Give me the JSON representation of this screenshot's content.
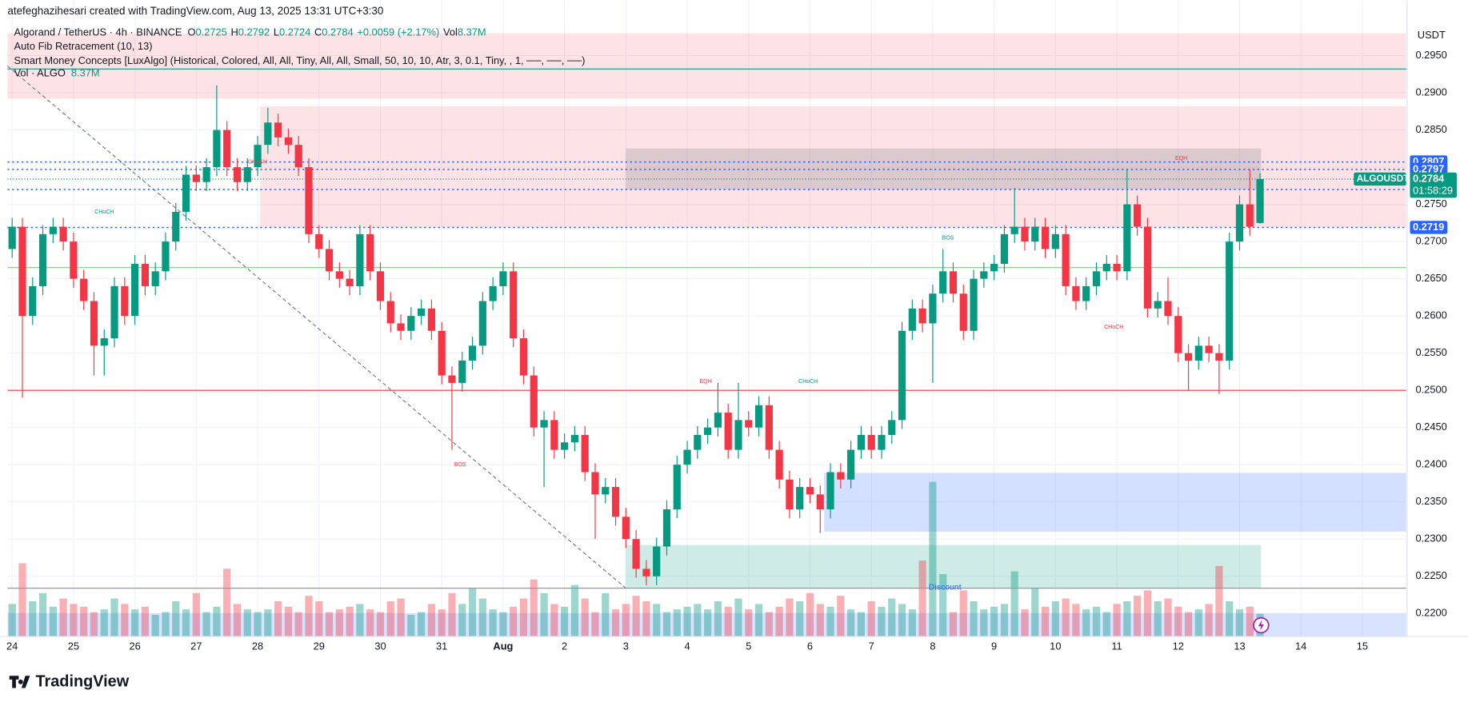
{
  "chart_data": {
    "type": "candlestick",
    "header": {
      "credit": "atefeghazihesari created with TradingView.com, Aug 13, 2025 13:31 UTC+3:30",
      "symbol": "Algorand / TetherUS · 4h · BINANCE",
      "O": "O",
      "H": "H",
      "L": "L",
      "C": "C",
      "change": "+0.0059 (+2.17%)",
      "vol": "Vol",
      "volume_label": "8.37M",
      "fib": "Auto Fib Retracement (10, 13)",
      "smc": "Smart Money Concepts [LuxAlgo] (Historical, Colored, All, All, Tiny, All, All, Small, 50, 10, 10, Atr, 3, 0.1, Tiny, , 1, ──, ──, ──)",
      "vol_name": "Vol · ALGO"
    },
    "currency": "USDT",
    "brand": "TradingView",
    "up_color": "#089981",
    "down_color": "#f23645",
    "ylim": [
      0.2169,
      0.2993
    ],
    "yticks": [
      {
        "value": 0.295,
        "label": "0.2950"
      },
      {
        "value": 0.29,
        "label": "0.2900"
      },
      {
        "value": 0.285,
        "label": "0.2850"
      },
      {
        "value": 0.28,
        "label": "0.2800"
      },
      {
        "value": 0.275,
        "label": "0.2750"
      },
      {
        "value": 0.27,
        "label": "0.2700"
      },
      {
        "value": 0.265,
        "label": "0.2650"
      },
      {
        "value": 0.26,
        "label": "0.2600"
      },
      {
        "value": 0.255,
        "label": "0.2550"
      },
      {
        "value": 0.25,
        "label": "0.2500"
      },
      {
        "value": 0.245,
        "label": "0.2450"
      },
      {
        "value": 0.24,
        "label": "0.2400"
      },
      {
        "value": 0.235,
        "label": "0.2350"
      },
      {
        "value": 0.23,
        "label": "0.2300"
      },
      {
        "value": 0.225,
        "label": "0.2250"
      },
      {
        "value": 0.22,
        "label": "0.2200"
      }
    ],
    "xlim": [
      -0.076,
      22.715
    ],
    "xticks": [
      {
        "value": 0,
        "label": "24"
      },
      {
        "value": 1,
        "label": "25"
      },
      {
        "value": 2,
        "label": "26"
      },
      {
        "value": 3,
        "label": "27"
      },
      {
        "value": 4,
        "label": "28"
      },
      {
        "value": 5,
        "label": "29"
      },
      {
        "value": 6,
        "label": "30"
      },
      {
        "value": 7,
        "label": "31"
      },
      {
        "value": 8,
        "label": "Aug"
      },
      {
        "value": 9,
        "label": "2"
      },
      {
        "value": 10,
        "label": "3"
      },
      {
        "value": 11,
        "label": "4"
      },
      {
        "value": 12,
        "label": "5"
      },
      {
        "value": 13,
        "label": "6"
      },
      {
        "value": 14,
        "label": "7"
      },
      {
        "value": 15,
        "label": "8"
      },
      {
        "value": 16,
        "label": "9"
      },
      {
        "value": 17,
        "label": "10"
      },
      {
        "value": 18,
        "label": "11"
      },
      {
        "value": 19,
        "label": "12"
      },
      {
        "value": 20,
        "label": "13"
      },
      {
        "value": 21,
        "label": "14"
      },
      {
        "value": 22,
        "label": "15"
      }
    ],
    "grid": true,
    "candles": [
      [
        0.269,
        0.2732,
        0.2678,
        0.272
      ],
      [
        0.272,
        0.2732,
        0.249,
        0.26
      ],
      [
        0.26,
        0.2652,
        0.2588,
        0.264
      ],
      [
        0.264,
        0.2722,
        0.2628,
        0.271
      ],
      [
        0.271,
        0.2732,
        0.2698,
        0.272
      ],
      [
        0.272,
        0.2732,
        0.2688,
        0.27
      ],
      [
        0.27,
        0.2712,
        0.2638,
        0.265
      ],
      [
        0.265,
        0.2662,
        0.2608,
        0.262
      ],
      [
        0.262,
        0.2632,
        0.252,
        0.256
      ],
      [
        0.256,
        0.2582,
        0.252,
        0.257
      ],
      [
        0.257,
        0.2652,
        0.2558,
        0.264
      ],
      [
        0.264,
        0.2652,
        0.2588,
        0.26
      ],
      [
        0.26,
        0.2682,
        0.2588,
        0.267
      ],
      [
        0.267,
        0.2682,
        0.2628,
        0.264
      ],
      [
        0.264,
        0.2672,
        0.2628,
        0.266
      ],
      [
        0.266,
        0.2712,
        0.2648,
        0.27
      ],
      [
        0.27,
        0.2752,
        0.2688,
        0.274
      ],
      [
        0.274,
        0.2802,
        0.2728,
        0.279
      ],
      [
        0.279,
        0.2802,
        0.2768,
        0.278
      ],
      [
        0.278,
        0.2812,
        0.2768,
        0.28
      ],
      [
        0.28,
        0.291,
        0.2788,
        0.285
      ],
      [
        0.285,
        0.2862,
        0.2788,
        0.28
      ],
      [
        0.28,
        0.2812,
        0.2768,
        0.278
      ],
      [
        0.278,
        0.2812,
        0.2768,
        0.28
      ],
      [
        0.28,
        0.2842,
        0.2788,
        0.283
      ],
      [
        0.283,
        0.288,
        0.2818,
        0.286
      ],
      [
        0.286,
        0.2872,
        0.2828,
        0.284
      ],
      [
        0.284,
        0.2852,
        0.2818,
        0.283
      ],
      [
        0.283,
        0.2842,
        0.2788,
        0.28
      ],
      [
        0.28,
        0.2812,
        0.2698,
        0.271
      ],
      [
        0.271,
        0.2722,
        0.2678,
        0.269
      ],
      [
        0.269,
        0.2702,
        0.2648,
        0.266
      ],
      [
        0.266,
        0.2672,
        0.2638,
        0.265
      ],
      [
        0.265,
        0.2662,
        0.2628,
        0.264
      ],
      [
        0.264,
        0.2722,
        0.2628,
        0.271
      ],
      [
        0.271,
        0.2722,
        0.2648,
        0.266
      ],
      [
        0.266,
        0.2672,
        0.2608,
        0.262
      ],
      [
        0.262,
        0.2632,
        0.2578,
        0.259
      ],
      [
        0.259,
        0.2602,
        0.2568,
        0.258
      ],
      [
        0.258,
        0.2612,
        0.2568,
        0.26
      ],
      [
        0.26,
        0.2622,
        0.2588,
        0.261
      ],
      [
        0.261,
        0.2622,
        0.2568,
        0.258
      ],
      [
        0.258,
        0.2592,
        0.2508,
        0.252
      ],
      [
        0.252,
        0.2532,
        0.242,
        0.251
      ],
      [
        0.251,
        0.2552,
        0.2498,
        0.254
      ],
      [
        0.254,
        0.2572,
        0.2528,
        0.256
      ],
      [
        0.256,
        0.2632,
        0.2548,
        0.262
      ],
      [
        0.262,
        0.2652,
        0.2608,
        0.264
      ],
      [
        0.264,
        0.2672,
        0.2628,
        0.266
      ],
      [
        0.266,
        0.2672,
        0.2558,
        0.257
      ],
      [
        0.257,
        0.2582,
        0.2508,
        0.252
      ],
      [
        0.252,
        0.2532,
        0.2438,
        0.245
      ],
      [
        0.245,
        0.2472,
        0.237,
        0.246
      ],
      [
        0.246,
        0.2472,
        0.2408,
        0.242
      ],
      [
        0.242,
        0.2442,
        0.2408,
        0.243
      ],
      [
        0.243,
        0.2452,
        0.2418,
        0.244
      ],
      [
        0.244,
        0.2452,
        0.2378,
        0.239
      ],
      [
        0.239,
        0.2402,
        0.23,
        0.236
      ],
      [
        0.236,
        0.2382,
        0.2348,
        0.237
      ],
      [
        0.237,
        0.2382,
        0.2318,
        0.233
      ],
      [
        0.233,
        0.2342,
        0.2288,
        0.23
      ],
      [
        0.23,
        0.2312,
        0.2248,
        0.226
      ],
      [
        0.226,
        0.2272,
        0.2238,
        0.225
      ],
      [
        0.225,
        0.2302,
        0.2238,
        0.229
      ],
      [
        0.229,
        0.2352,
        0.2278,
        0.234
      ],
      [
        0.234,
        0.2412,
        0.2328,
        0.24
      ],
      [
        0.24,
        0.2432,
        0.2388,
        0.242
      ],
      [
        0.242,
        0.2452,
        0.2408,
        0.244
      ],
      [
        0.244,
        0.2462,
        0.2428,
        0.245
      ],
      [
        0.245,
        0.251,
        0.2438,
        0.247
      ],
      [
        0.247,
        0.2482,
        0.2408,
        0.242
      ],
      [
        0.242,
        0.251,
        0.2408,
        0.246
      ],
      [
        0.246,
        0.2472,
        0.2438,
        0.245
      ],
      [
        0.245,
        0.2492,
        0.2438,
        0.248
      ],
      [
        0.248,
        0.2492,
        0.2408,
        0.242
      ],
      [
        0.242,
        0.2432,
        0.2368,
        0.238
      ],
      [
        0.238,
        0.2392,
        0.2328,
        0.234
      ],
      [
        0.234,
        0.2382,
        0.2328,
        0.237
      ],
      [
        0.237,
        0.2382,
        0.2348,
        0.236
      ],
      [
        0.236,
        0.2372,
        0.2308,
        0.234
      ],
      [
        0.234,
        0.2402,
        0.2328,
        0.239
      ],
      [
        0.239,
        0.2402,
        0.2368,
        0.238
      ],
      [
        0.238,
        0.2432,
        0.2368,
        0.242
      ],
      [
        0.242,
        0.2452,
        0.2408,
        0.244
      ],
      [
        0.244,
        0.2452,
        0.2408,
        0.242
      ],
      [
        0.242,
        0.2452,
        0.2408,
        0.244
      ],
      [
        0.244,
        0.2472,
        0.2428,
        0.246
      ],
      [
        0.246,
        0.2592,
        0.2448,
        0.258
      ],
      [
        0.258,
        0.2622,
        0.2568,
        0.261
      ],
      [
        0.261,
        0.2622,
        0.2578,
        0.259
      ],
      [
        0.259,
        0.2642,
        0.251,
        0.263
      ],
      [
        0.263,
        0.269,
        0.2618,
        0.266
      ],
      [
        0.266,
        0.2672,
        0.2618,
        0.263
      ],
      [
        0.263,
        0.2642,
        0.2568,
        0.258
      ],
      [
        0.258,
        0.2662,
        0.2568,
        0.265
      ],
      [
        0.265,
        0.2672,
        0.2638,
        0.266
      ],
      [
        0.266,
        0.2682,
        0.2648,
        0.267
      ],
      [
        0.267,
        0.2722,
        0.2658,
        0.271
      ],
      [
        0.271,
        0.2772,
        0.2698,
        0.272
      ],
      [
        0.272,
        0.2732,
        0.2688,
        0.27
      ],
      [
        0.27,
        0.2732,
        0.2688,
        0.272
      ],
      [
        0.272,
        0.2732,
        0.2678,
        0.269
      ],
      [
        0.269,
        0.2722,
        0.2678,
        0.271
      ],
      [
        0.271,
        0.2722,
        0.2628,
        0.264
      ],
      [
        0.264,
        0.2652,
        0.2608,
        0.262
      ],
      [
        0.262,
        0.2652,
        0.2608,
        0.264
      ],
      [
        0.264,
        0.2672,
        0.2628,
        0.266
      ],
      [
        0.266,
        0.2682,
        0.2648,
        0.267
      ],
      [
        0.267,
        0.2682,
        0.2648,
        0.266
      ],
      [
        0.266,
        0.2797,
        0.2648,
        0.275
      ],
      [
        0.275,
        0.2762,
        0.2708,
        0.272
      ],
      [
        0.272,
        0.2732,
        0.2598,
        0.261
      ],
      [
        0.261,
        0.2632,
        0.2598,
        0.262
      ],
      [
        0.262,
        0.2652,
        0.2588,
        0.26
      ],
      [
        0.26,
        0.2612,
        0.2538,
        0.255
      ],
      [
        0.255,
        0.2562,
        0.25,
        0.254
      ],
      [
        0.254,
        0.2572,
        0.2528,
        0.256
      ],
      [
        0.256,
        0.2572,
        0.2538,
        0.255
      ],
      [
        0.255,
        0.2562,
        0.2495,
        0.254
      ],
      [
        0.254,
        0.2712,
        0.2528,
        0.27
      ],
      [
        0.27,
        0.2762,
        0.2688,
        0.275
      ],
      [
        0.275,
        0.2797,
        0.2708,
        0.272
      ],
      [
        0.2725,
        0.2792,
        0.2724,
        0.2784
      ]
    ],
    "volume_ylim": [
      0,
      100
    ],
    "volume": [
      12,
      27,
      13,
      16,
      11,
      14,
      12,
      11,
      9,
      10,
      14,
      12,
      10,
      11,
      8,
      9,
      13,
      10,
      16,
      9,
      11,
      25,
      12,
      10,
      9,
      10,
      13,
      11,
      9,
      15,
      13,
      9,
      10,
      11,
      12,
      10,
      9,
      13,
      14,
      8,
      9,
      12,
      10,
      16,
      12,
      18,
      14,
      10,
      9,
      11,
      14,
      21,
      16,
      12,
      11,
      19,
      14,
      9,
      16,
      10,
      12,
      15,
      13,
      12,
      9,
      10,
      11,
      12,
      10,
      13,
      11,
      14,
      10,
      12,
      9,
      11,
      14,
      13,
      16,
      12,
      11,
      15,
      10,
      9,
      13,
      11,
      14,
      12,
      10,
      28,
      57,
      23,
      9,
      17,
      13,
      10,
      11,
      12,
      24,
      10,
      18,
      11,
      13,
      14,
      12,
      10,
      11,
      9,
      12,
      13,
      15,
      17,
      13,
      14,
      11,
      9,
      10,
      12,
      26,
      13,
      10,
      11,
      8.37
    ],
    "zones": [
      {
        "top": 0.298,
        "bottom": 0.2892,
        "from": -0.076,
        "to": 22.715,
        "color": "rgba(242,54,69,0.14)"
      },
      {
        "top": 0.2882,
        "bottom": 0.2719,
        "from": 4.04,
        "to": 22.715,
        "color": "rgba(242,54,69,0.14)"
      },
      {
        "top": 0.2825,
        "bottom": 0.277,
        "from": 10.0,
        "to": 20.35,
        "color": "rgba(120,123,134,0.25)"
      },
      {
        "top": 0.2389,
        "bottom": 0.231,
        "from": 13.23,
        "to": 22.715,
        "color": "rgba(41,98,255,0.2)"
      },
      {
        "top": 0.2292,
        "bottom": 0.2234,
        "from": 10.0,
        "to": 20.35,
        "color": "rgba(8,153,129,0.2)"
      },
      {
        "top": 0.22,
        "bottom": 0.2169,
        "from": -0.076,
        "to": 22.715,
        "color": "rgba(41,98,255,0.18)"
      }
    ],
    "lines": [
      {
        "value": 0.2932,
        "color": "#089981",
        "dash": "none"
      },
      {
        "value": 0.2665,
        "color": "#81c784",
        "dash": "none"
      },
      {
        "value": 0.25,
        "color": "#f23645",
        "dash": "none"
      },
      {
        "value": 0.2234,
        "color": "#9598a1",
        "dash": "none"
      }
    ],
    "levels": [
      {
        "value": 0.2807,
        "label": "0.2807",
        "color": "#2962ff"
      },
      {
        "value": 0.2797,
        "label": "0.2797",
        "color": "#2962ff"
      },
      {
        "value": 0.277,
        "label": "0.2770",
        "color": "#2962ff"
      },
      {
        "value": 0.2719,
        "label": "0.2719",
        "color": "#2962ff"
      }
    ],
    "last": {
      "value": 0.2784,
      "label": "0.2784",
      "symbol": "ALGOUSDT",
      "countdown": "01:58:29",
      "color": "#089981"
    },
    "fib_line": {
      "x": [
        -0.076,
        10.0
      ],
      "y": [
        0.2936,
        0.2234
      ]
    },
    "annotations": [
      {
        "text": "CHoCH",
        "x": 1.5,
        "y": 0.274,
        "color": "#089981"
      },
      {
        "text": "CHoCH",
        "x": 4.0,
        "y": 0.2807,
        "color": "#f23645"
      },
      {
        "text": "BOS",
        "x": 7.3,
        "y": 0.24,
        "color": "#f23645"
      },
      {
        "text": "EQH",
        "x": 11.3,
        "y": 0.2512,
        "color": "#f23645"
      },
      {
        "text": "CHoCH",
        "x": 12.97,
        "y": 0.2512,
        "color": "#089981"
      },
      {
        "text": "BOS",
        "x": 15.25,
        "y": 0.2705,
        "color": "#089981"
      },
      {
        "text": "CHoCH",
        "x": 17.95,
        "y": 0.2585,
        "color": "#f23645"
      },
      {
        "text": "EQH",
        "x": 19.05,
        "y": 0.2812,
        "color": "#f23645"
      },
      {
        "text": "Discount",
        "x": 15.2,
        "y": 0.2235,
        "color": "#2962ff"
      }
    ]
  }
}
